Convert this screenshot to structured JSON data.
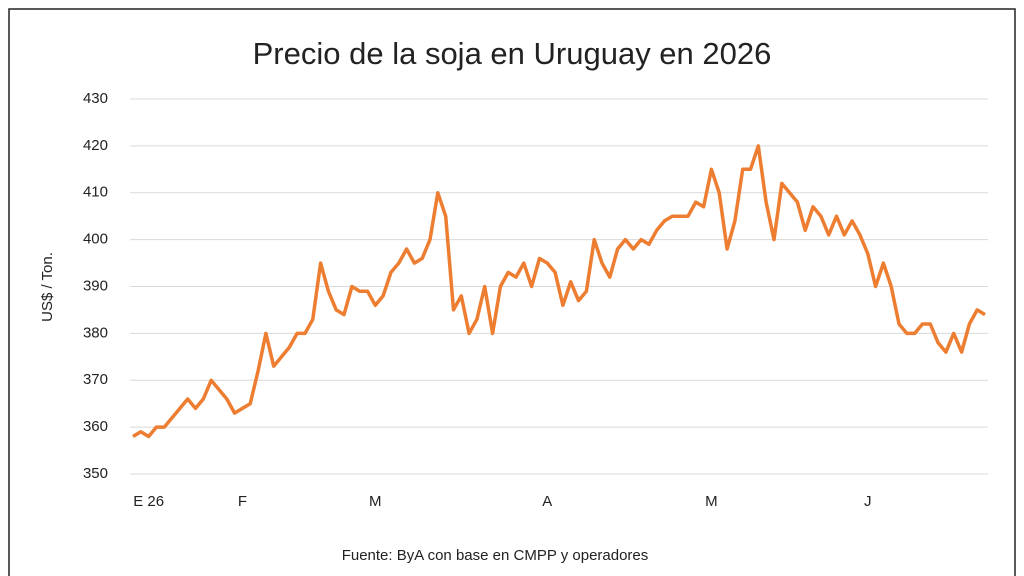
{
  "chart_data": {
    "type": "line",
    "title": "Precio de la soja en Uruguay en 2026",
    "y_label": "US$ / Ton.",
    "source": "Fuente: ByA con base en CMPP y operadores",
    "categories": [
      null,
      null,
      "E 26",
      null,
      null,
      null,
      null,
      null,
      null,
      null,
      null,
      null,
      null,
      null,
      "F",
      null,
      null,
      null,
      null,
      null,
      null,
      null,
      null,
      null,
      null,
      null,
      null,
      null,
      null,
      null,
      null,
      "M",
      null,
      null,
      null,
      null,
      null,
      null,
      null,
      null,
      null,
      null,
      null,
      null,
      null,
      null,
      null,
      null,
      null,
      null,
      null,
      null,
      null,
      "A",
      null,
      null,
      null,
      null,
      null,
      null,
      null,
      null,
      null,
      null,
      null,
      null,
      null,
      null,
      null,
      null,
      null,
      null,
      null,
      null,
      "M",
      null,
      null,
      null,
      null,
      null,
      null,
      null,
      null,
      null,
      null,
      null,
      null,
      null,
      null,
      null,
      null,
      null,
      null,
      null,
      "J",
      null,
      null,
      null,
      null,
      null,
      null,
      null,
      null,
      null,
      null,
      null,
      null,
      null,
      null,
      null
    ],
    "values": [
      358,
      359,
      358,
      360,
      360,
      362,
      364,
      366,
      364,
      366,
      370,
      368,
      366,
      363,
      364,
      365,
      372,
      380,
      373,
      375,
      377,
      380,
      380,
      383,
      395,
      389,
      385,
      384,
      390,
      389,
      389,
      386,
      388,
      393,
      395,
      398,
      395,
      396,
      400,
      410,
      405,
      385,
      388,
      380,
      383,
      390,
      380,
      390,
      393,
      392,
      395,
      390,
      396,
      395,
      393,
      386,
      391,
      387,
      389,
      400,
      395,
      392,
      398,
      400,
      398,
      400,
      399,
      402,
      404,
      405,
      405,
      405,
      408,
      407,
      415,
      410,
      398,
      404,
      415,
      415,
      420,
      408,
      400,
      412,
      410,
      408,
      402,
      407,
      405,
      401,
      405,
      401,
      404,
      401,
      397,
      390,
      395,
      390,
      382,
      380,
      380,
      382,
      382,
      378,
      376,
      380,
      376,
      382,
      385,
      384
    ],
    "color": "#ed7d31",
    "ylim": [
      350,
      430
    ],
    "yticks": [
      350,
      360,
      370,
      380,
      390,
      400,
      410,
      420,
      430
    ],
    "grid": true
  }
}
